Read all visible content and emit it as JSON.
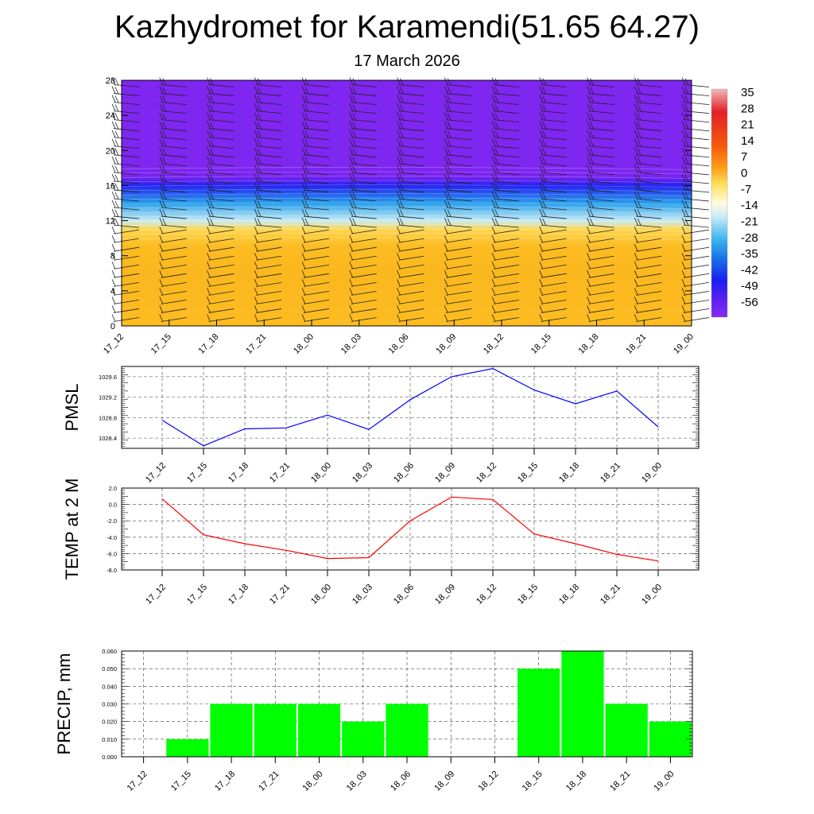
{
  "header": {
    "title": "Kazhydromet for Karamendi(51.65 64.27)",
    "subtitle": "17 March 2026"
  },
  "chart_data": [
    {
      "type": "heatmap",
      "name": "temperature-wind-cross-section",
      "x": [
        "17_12",
        "17_15",
        "17_18",
        "17_21",
        "18_00",
        "18_03",
        "18_06",
        "18_09",
        "18_12",
        "18_15",
        "18_18",
        "18_21",
        "19_00"
      ],
      "ylim": [
        0,
        28
      ],
      "yticks": [
        0,
        4,
        8,
        12,
        16,
        20,
        24,
        28
      ],
      "colorbar_labels": [
        "35",
        "28",
        "21",
        "14",
        "7",
        "0",
        "-7",
        "-14",
        "-21",
        "-28",
        "-35",
        "-42",
        "-49",
        "-56"
      ],
      "bands": [
        {
          "level": 0,
          "temp": 2
        },
        {
          "level": 6,
          "temp": 3
        },
        {
          "level": 9,
          "temp": 2
        },
        {
          "level": 11,
          "temp": -4
        },
        {
          "level": 12,
          "temp": -14
        },
        {
          "level": 14,
          "temp": -28
        },
        {
          "level": 16,
          "temp": -45
        },
        {
          "level": 17,
          "temp": -56
        },
        {
          "level": 18,
          "temp": -62
        },
        {
          "level": 28,
          "temp": -62
        }
      ],
      "colors": {
        "warm": "#fbb81c",
        "cold": "#7f26f0",
        "accent": "#1536f2"
      }
    },
    {
      "type": "line",
      "name": "pmsl",
      "x": [
        "17_12",
        "17_15",
        "17_18",
        "17_21",
        "18_00",
        "18_03",
        "18_06",
        "18_09",
        "18_12",
        "18_15",
        "18_18",
        "18_21",
        "19_00"
      ],
      "values": [
        1028.75,
        1028.25,
        1028.58,
        1028.6,
        1028.85,
        1028.57,
        1029.15,
        1029.6,
        1029.76,
        1029.34,
        1029.07,
        1029.32,
        1028.62
      ],
      "ylabel": "PMSL",
      "ylim": [
        1028.2,
        1029.8
      ],
      "yticks": [
        "1028.4",
        "1028.8",
        "1029.2",
        "1029.6"
      ],
      "color": "#0000ff"
    },
    {
      "type": "line",
      "name": "temp2m",
      "x": [
        "17_12",
        "17_15",
        "17_18",
        "17_21",
        "18_00",
        "18_03",
        "18_06",
        "18_09",
        "18_12",
        "18_15",
        "18_18",
        "18_21",
        "19_00"
      ],
      "values": [
        0.7,
        -3.7,
        -4.8,
        -5.6,
        -6.6,
        -6.5,
        -2.0,
        0.9,
        0.6,
        -3.6,
        -4.8,
        -6.1,
        -6.9
      ],
      "ylabel": "TEMP at 2 M",
      "ylim": [
        -8,
        2
      ],
      "yticks": [
        "-8.0",
        "-6.0",
        "-4.0",
        "-2.0",
        "0.0",
        "2.0"
      ],
      "color": "#ff0000"
    },
    {
      "type": "bar",
      "name": "precip",
      "x": [
        "17_12",
        "17_15",
        "17_18",
        "17_21",
        "18_00",
        "18_03",
        "18_06",
        "18_09",
        "18_12",
        "18_15",
        "18_18",
        "18_21",
        "19_00"
      ],
      "values": [
        0,
        0.01,
        0.03,
        0.03,
        0.03,
        0.02,
        0.03,
        0,
        0,
        0.05,
        0.06,
        0.03,
        0.02
      ],
      "ylabel": "PRECIP, mm",
      "ylim": [
        0,
        0.06
      ],
      "yticks": [
        "0.000",
        "0.010",
        "0.020",
        "0.030",
        "0.040",
        "0.050",
        "0.060"
      ],
      "color": "#00ff00"
    }
  ]
}
